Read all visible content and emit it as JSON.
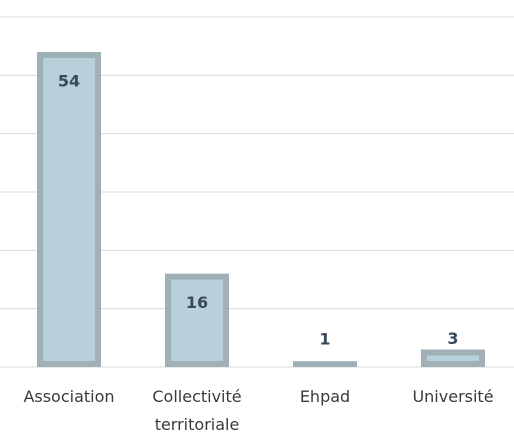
{
  "chart_data": {
    "type": "bar",
    "categories": [
      "Association",
      "Collectivité territoriale",
      "Ehpad",
      "Université"
    ],
    "values": [
      54,
      16,
      1,
      3
    ],
    "color": "#9fb1b6",
    "inner_color": "#b8d0d9",
    "label_color": "#3a4a5c",
    "ylim": [
      0,
      60
    ],
    "yticks": [
      0,
      10,
      20,
      30,
      40,
      50,
      60
    ],
    "grid": true
  }
}
